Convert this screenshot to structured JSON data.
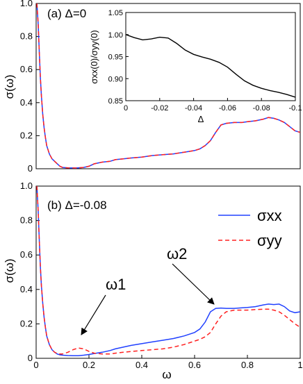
{
  "chart_data": [
    {
      "type": "line",
      "panel": "a",
      "panel_label": "(a) Δ=0",
      "ylabel": "σ(ω)",
      "xlabel": "",
      "xlim": [
        0,
        1
      ],
      "ylim": [
        0,
        1
      ],
      "xticks": [],
      "yticks": [
        "0",
        "0.2",
        "0.4",
        "0.6",
        "0.8",
        "1.0"
      ],
      "yticks_values": [
        0,
        0.2,
        0.4,
        0.6,
        0.8,
        1.0
      ],
      "series": [
        {
          "color": "#2040ff",
          "dash": "solid",
          "x": [
            0.003,
            0.008,
            0.012,
            0.016,
            0.02,
            0.025,
            0.03,
            0.035,
            0.04,
            0.05,
            0.06,
            0.07,
            0.08,
            0.09,
            0.1,
            0.12,
            0.15,
            0.18,
            0.2,
            0.22,
            0.25,
            0.28,
            0.3,
            0.33,
            0.36,
            0.4,
            0.44,
            0.48,
            0.52,
            0.56,
            0.6,
            0.62,
            0.64,
            0.66,
            0.68,
            0.7,
            0.72,
            0.75,
            0.78,
            0.8,
            0.83,
            0.86,
            0.88,
            0.9,
            0.92,
            0.94,
            0.96,
            0.98,
            1.0
          ],
          "y": [
            1.0,
            0.87,
            0.7,
            0.55,
            0.44,
            0.33,
            0.25,
            0.19,
            0.14,
            0.09,
            0.06,
            0.045,
            0.03,
            0.015,
            0.008,
            0.005,
            0.004,
            0.008,
            0.015,
            0.03,
            0.04,
            0.045,
            0.055,
            0.06,
            0.065,
            0.07,
            0.08,
            0.085,
            0.09,
            0.1,
            0.11,
            0.12,
            0.14,
            0.17,
            0.22,
            0.265,
            0.275,
            0.28,
            0.28,
            0.285,
            0.29,
            0.3,
            0.31,
            0.305,
            0.295,
            0.28,
            0.255,
            0.23,
            0.22
          ]
        },
        {
          "color": "#ff2020",
          "dash": "dashed",
          "x": [
            0.003,
            0.008,
            0.012,
            0.016,
            0.02,
            0.025,
            0.03,
            0.035,
            0.04,
            0.05,
            0.06,
            0.07,
            0.08,
            0.09,
            0.1,
            0.12,
            0.15,
            0.18,
            0.2,
            0.22,
            0.25,
            0.28,
            0.3,
            0.33,
            0.36,
            0.4,
            0.44,
            0.48,
            0.52,
            0.56,
            0.6,
            0.62,
            0.64,
            0.66,
            0.68,
            0.7,
            0.72,
            0.75,
            0.78,
            0.8,
            0.83,
            0.86,
            0.88,
            0.9,
            0.92,
            0.94,
            0.96,
            0.98,
            1.0
          ],
          "y": [
            1.0,
            0.87,
            0.7,
            0.55,
            0.44,
            0.33,
            0.25,
            0.19,
            0.14,
            0.09,
            0.06,
            0.045,
            0.03,
            0.015,
            0.008,
            0.005,
            0.004,
            0.008,
            0.015,
            0.03,
            0.04,
            0.045,
            0.055,
            0.06,
            0.065,
            0.07,
            0.08,
            0.085,
            0.09,
            0.1,
            0.11,
            0.12,
            0.14,
            0.17,
            0.22,
            0.265,
            0.275,
            0.28,
            0.28,
            0.285,
            0.29,
            0.3,
            0.31,
            0.305,
            0.295,
            0.28,
            0.255,
            0.23,
            0.22
          ]
        }
      ],
      "inset": {
        "type": "line",
        "xlabel": "Δ",
        "ylabel": "σxx(0)/σyy(0)",
        "xlim": [
          0,
          -0.1
        ],
        "ylim": [
          0.85,
          1.05
        ],
        "xticks": [
          "0",
          "-0.02",
          "-0.04",
          "-0.06",
          "-0.08",
          "-0.1"
        ],
        "xticks_values": [
          0,
          -0.02,
          -0.04,
          -0.06,
          -0.08,
          -0.1
        ],
        "yticks": [
          "0.85",
          "0.90",
          "0.95",
          "1.00",
          "1.05"
        ],
        "yticks_values": [
          0.85,
          0.9,
          0.95,
          1.0,
          1.05
        ],
        "series": [
          {
            "color": "#000000",
            "x": [
              0,
              -0.005,
              -0.01,
              -0.015,
              -0.02,
              -0.025,
              -0.03,
              -0.035,
              -0.04,
              -0.045,
              -0.05,
              -0.055,
              -0.06,
              -0.065,
              -0.07,
              -0.075,
              -0.08,
              -0.085,
              -0.09,
              -0.095,
              -0.1
            ],
            "y": [
              1.0,
              0.993,
              0.988,
              0.99,
              0.994,
              0.992,
              0.98,
              0.965,
              0.955,
              0.949,
              0.944,
              0.937,
              0.926,
              0.91,
              0.895,
              0.885,
              0.878,
              0.873,
              0.869,
              0.864,
              0.858
            ]
          }
        ]
      }
    },
    {
      "type": "line",
      "panel": "b",
      "panel_label": "(b) Δ=-0.08",
      "ylabel": "σ(ω)",
      "xlabel": "ω",
      "xlim": [
        0,
        1
      ],
      "ylim": [
        0,
        1
      ],
      "xticks": [
        "0",
        "0.2",
        "0.4",
        "0.6",
        "0.8",
        "1"
      ],
      "xticks_values": [
        0,
        0.2,
        0.4,
        0.6,
        0.8,
        1.0
      ],
      "yticks": [
        "0",
        "0.2",
        "0.4",
        "0.6",
        "0.8",
        "1.0"
      ],
      "yticks_values": [
        0,
        0.2,
        0.4,
        0.6,
        0.8,
        1.0
      ],
      "legend": {
        "placement": "top-right",
        "entries": [
          {
            "label": "σxx",
            "color": "#2040ff",
            "dash": "solid"
          },
          {
            "label": "σyy",
            "color": "#ff2020",
            "dash": "dashed"
          }
        ]
      },
      "annotations": [
        {
          "text": "ω1",
          "target_x": 0.17,
          "target_y": 0.06
        },
        {
          "text": "ω2",
          "target_x": 0.68,
          "target_y": 0.29
        }
      ],
      "series": [
        {
          "name": "σxx",
          "color": "#2040ff",
          "dash": "solid",
          "x": [
            0.003,
            0.008,
            0.012,
            0.016,
            0.02,
            0.025,
            0.03,
            0.035,
            0.04,
            0.05,
            0.06,
            0.07,
            0.08,
            0.09,
            0.1,
            0.12,
            0.14,
            0.16,
            0.18,
            0.2,
            0.22,
            0.25,
            0.28,
            0.3,
            0.33,
            0.36,
            0.4,
            0.44,
            0.48,
            0.52,
            0.56,
            0.6,
            0.62,
            0.64,
            0.66,
            0.68,
            0.7,
            0.72,
            0.75,
            0.78,
            0.8,
            0.83,
            0.86,
            0.88,
            0.9,
            0.92,
            0.94,
            0.96,
            0.98,
            1.0
          ],
          "y": [
            1.0,
            0.85,
            0.68,
            0.53,
            0.42,
            0.32,
            0.24,
            0.18,
            0.13,
            0.08,
            0.05,
            0.035,
            0.025,
            0.02,
            0.018,
            0.016,
            0.015,
            0.015,
            0.018,
            0.022,
            0.028,
            0.035,
            0.045,
            0.055,
            0.065,
            0.075,
            0.085,
            0.095,
            0.105,
            0.115,
            0.13,
            0.15,
            0.17,
            0.21,
            0.27,
            0.29,
            0.292,
            0.29,
            0.29,
            0.293,
            0.295,
            0.3,
            0.31,
            0.315,
            0.312,
            0.315,
            0.3,
            0.275,
            0.265,
            0.27
          ]
        },
        {
          "name": "σyy",
          "color": "#ff2020",
          "dash": "dashed",
          "x": [
            0.003,
            0.008,
            0.012,
            0.016,
            0.02,
            0.025,
            0.03,
            0.035,
            0.04,
            0.05,
            0.06,
            0.07,
            0.08,
            0.09,
            0.1,
            0.12,
            0.14,
            0.16,
            0.18,
            0.2,
            0.22,
            0.25,
            0.28,
            0.3,
            0.33,
            0.36,
            0.4,
            0.44,
            0.48,
            0.52,
            0.56,
            0.6,
            0.62,
            0.64,
            0.66,
            0.68,
            0.7,
            0.72,
            0.75,
            0.78,
            0.8,
            0.83,
            0.86,
            0.88,
            0.9,
            0.92,
            0.94,
            0.96,
            0.98,
            1.0
          ],
          "y": [
            1.0,
            0.85,
            0.68,
            0.53,
            0.42,
            0.32,
            0.24,
            0.18,
            0.13,
            0.08,
            0.05,
            0.035,
            0.028,
            0.025,
            0.025,
            0.035,
            0.05,
            0.06,
            0.055,
            0.04,
            0.03,
            0.025,
            0.025,
            0.03,
            0.035,
            0.04,
            0.045,
            0.05,
            0.055,
            0.065,
            0.08,
            0.1,
            0.11,
            0.125,
            0.15,
            0.2,
            0.245,
            0.27,
            0.28,
            0.28,
            0.28,
            0.283,
            0.285,
            0.285,
            0.28,
            0.27,
            0.25,
            0.225,
            0.2,
            0.18
          ]
        }
      ]
    }
  ]
}
